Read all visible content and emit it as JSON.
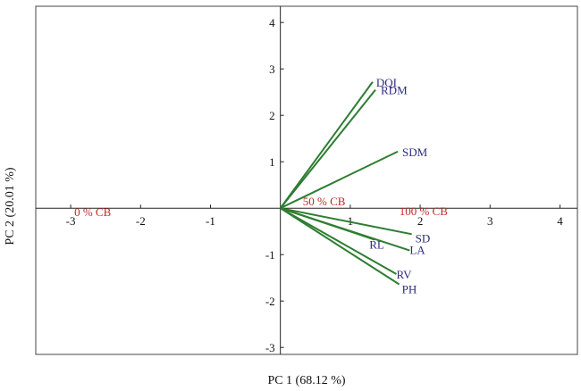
{
  "chart_data": {
    "type": "scatter",
    "subtype": "biplot",
    "xlabel": "PC 1 (68.12 %)",
    "ylabel": "PC 2 (20.01 %)",
    "xlim": [
      -3.5,
      4.25
    ],
    "ylim": [
      -3.15,
      4.35
    ],
    "x_ticks": [
      -3,
      -2,
      -1,
      1,
      2,
      3,
      4
    ],
    "y_ticks": [
      -3,
      -2,
      -1,
      1,
      2,
      3,
      4
    ],
    "grid": false,
    "colors": {
      "vector": "#2e7d32",
      "variable_label": "#2b2d7f",
      "treatment_label": "#c0292b"
    },
    "vectors": [
      {
        "label": "DQI",
        "x": 1.32,
        "y": 2.72
      },
      {
        "label": "RDM",
        "x": 1.36,
        "y": 2.55
      },
      {
        "label": "SDM",
        "x": 1.68,
        "y": 1.22
      },
      {
        "label": "SD",
        "x": 1.88,
        "y": -0.56
      },
      {
        "label": "LA",
        "x": 1.85,
        "y": -0.91
      },
      {
        "label": "RL",
        "x": 1.35,
        "y": -0.68
      },
      {
        "label": "RV",
        "x": 1.66,
        "y": -1.42
      },
      {
        "label": "PH",
        "x": 1.7,
        "y": -1.64
      }
    ],
    "treatments": [
      {
        "label": "0 % CB",
        "x": -3.0,
        "y": 0.0
      },
      {
        "label": "50 % CB",
        "x": 0.27,
        "y": 0.23
      },
      {
        "label": "100 % CB",
        "x": 1.65,
        "y": 0.02
      }
    ]
  }
}
